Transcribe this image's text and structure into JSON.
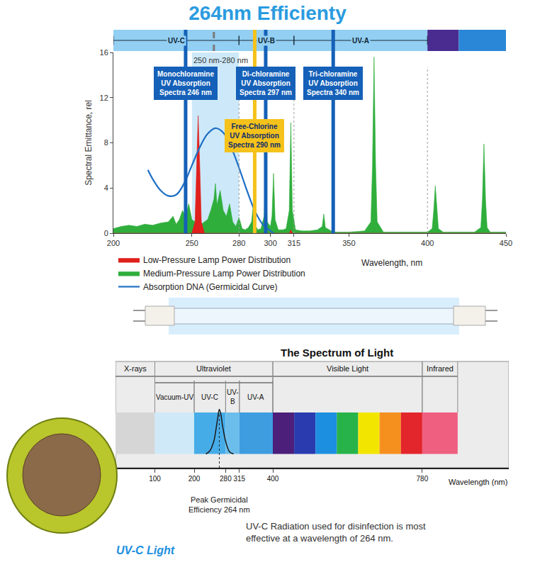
{
  "chart_data": [
    {
      "type": "area",
      "title": "264nm Efficienty",
      "xlabel": "Wavelength, nm",
      "ylabel": "Spectral Emittance, rel",
      "xlim": [
        200,
        450
      ],
      "xticks": [
        200,
        250,
        280,
        300,
        315,
        350,
        400,
        450
      ],
      "ylim": [
        0,
        16
      ],
      "yticks": [
        0,
        4,
        8,
        12,
        16
      ],
      "grid": false,
      "legend": "bottom",
      "series": [
        {
          "name": "Low-Pressure Lamp Power Distribution",
          "color": "#e0201c",
          "type": "area",
          "x": [
            200,
            250,
            252,
            253,
            254,
            255,
            256,
            258,
            296,
            297,
            298,
            312,
            313,
            314,
            450
          ],
          "values": [
            0,
            0,
            1.0,
            6.0,
            10.4,
            6.0,
            1.0,
            0,
            0,
            0.3,
            0,
            0,
            0.3,
            0,
            0
          ]
        },
        {
          "name": "Medium-Pressure Lamp Power Distribution",
          "color": "#2fae3c",
          "type": "area",
          "x": [
            200,
            205,
            210,
            215,
            220,
            225,
            230,
            235,
            238,
            240,
            242,
            244,
            246,
            248,
            250,
            252,
            254,
            256,
            258,
            260,
            262,
            264,
            265,
            266,
            268,
            270,
            272,
            274,
            276,
            278,
            280,
            282,
            284,
            286,
            288,
            289,
            290,
            292,
            294,
            296,
            297,
            298,
            300,
            301,
            302,
            303,
            305,
            308,
            310,
            312,
            313,
            314,
            316,
            320,
            325,
            330,
            333,
            334,
            335,
            340,
            350,
            360,
            364,
            365,
            366,
            367,
            368,
            372,
            380,
            390,
            400,
            403,
            404,
            405,
            406,
            407,
            410,
            420,
            430,
            434,
            435,
            436,
            437,
            438,
            440,
            450
          ],
          "values": [
            0.4,
            0.6,
            0.7,
            0.6,
            0.8,
            0.7,
            0.9,
            1.0,
            1.5,
            0.8,
            1.2,
            2.0,
            1.5,
            2.6,
            1.2,
            1.0,
            1.8,
            0.8,
            1.0,
            1.2,
            2.0,
            3.0,
            4.4,
            2.5,
            3.8,
            2.0,
            1.5,
            2.6,
            1.0,
            0.6,
            1.4,
            0.4,
            0.3,
            0.5,
            1.0,
            2.4,
            0.8,
            0.3,
            0.4,
            1.5,
            4.6,
            1.0,
            0.6,
            1.5,
            5.3,
            1.2,
            0.3,
            0.3,
            0.4,
            2.0,
            9.8,
            2.0,
            0.3,
            0.2,
            0.2,
            0.3,
            0.6,
            1.7,
            0.5,
            0.1,
            0.1,
            0.2,
            1.0,
            6.0,
            15.6,
            6.0,
            1.0,
            0.1,
            0.1,
            0.1,
            0.1,
            0.4,
            2.0,
            4.2,
            2.0,
            0.4,
            0.1,
            0.1,
            0.1,
            0.5,
            3.0,
            7.9,
            3.0,
            0.5,
            0.1,
            0.1
          ]
        },
        {
          "name": "Absorption DNA (Germicidal Curve)",
          "color": "#1f6fc4",
          "type": "line",
          "x": [
            222,
            225,
            230,
            235,
            240,
            245,
            250,
            255,
            260,
            265,
            270,
            275,
            280,
            285,
            290,
            295,
            300,
            302
          ],
          "values": [
            5.6,
            4.8,
            3.8,
            3.3,
            3.4,
            4.4,
            6.0,
            7.6,
            8.8,
            9.3,
            8.9,
            7.6,
            5.8,
            3.8,
            2.0,
            0.8,
            0.2,
            0
          ]
        }
      ],
      "bands": [
        {
          "label": "UV-C",
          "end": 280
        },
        {
          "label": "UV-B",
          "start": 280,
          "end": 315
        },
        {
          "label": "UV-A",
          "start": 315,
          "end": 400
        }
      ],
      "highlight": {
        "label": "250 nm-280 nm",
        "start": 250,
        "end": 280
      },
      "peak_wavelength": 264,
      "absorption_markers": [
        {
          "wavelength": 246,
          "lines": [
            "Monochloramine",
            "UV Absorption",
            "Spectra 246 nm"
          ],
          "color": "#1560b8"
        },
        {
          "wavelength": 297,
          "lines": [
            "Di-chloramine",
            "UV Absorption",
            "Spectra 297 nm"
          ],
          "color": "#1560b8"
        },
        {
          "wavelength": 340,
          "lines": [
            "Tri-chloramine",
            "UV Absorption",
            "Spectra 340 nm"
          ],
          "color": "#1560b8"
        },
        {
          "wavelength": 290,
          "lines": [
            "Free-Chlorine",
            "UV Absorption",
            "Spectra 290 nm"
          ],
          "color": "#f5c21b"
        }
      ]
    },
    {
      "type": "spectrum",
      "title": "The Spectrum of Light",
      "xlabel": "Wavelength (nm)",
      "xlim": [
        0,
        1000
      ],
      "xticks": [
        100,
        200,
        280,
        315,
        400,
        780
      ],
      "ylim": [
        0,
        1
      ],
      "tick_labels": "x",
      "grid": false,
      "regions": [
        {
          "label": "X-rays",
          "end": 100,
          "color": "#d6d6d6"
        },
        {
          "label": "Ultraviolet",
          "start": 100,
          "end": 400
        },
        {
          "label": "Visible Light",
          "start": 400,
          "end": 780,
          "colors": [
            "#4b1f7a",
            "#2a3bb0",
            "#1c8fe0",
            "#27b34a",
            "#f2e600",
            "#f5901f",
            "#e3262b"
          ]
        },
        {
          "label": "Infrared",
          "start": 780,
          "end": 870,
          "color": "#ef5f80"
        }
      ],
      "subregions": [
        {
          "label": "Vacuum-UV",
          "start": 100,
          "end": 200,
          "color": "#cfe9f8"
        },
        {
          "label": "UV-C",
          "start": 200,
          "end": 280,
          "color": "#46ace8"
        },
        {
          "label": "UV-B",
          "start": 280,
          "end": 315,
          "color": "#6bbdec"
        },
        {
          "label": "UV-A",
          "start": 315,
          "end": 400,
          "color": "#3d9ddf"
        }
      ],
      "series": [
        {
          "color": "#1a1a1a",
          "x": [
            230,
            240,
            250,
            255,
            260,
            264,
            268,
            272,
            280,
            290,
            300
          ],
          "values": [
            0.13,
            0.16,
            0.25,
            0.35,
            0.47,
            0.55,
            0.5,
            0.4,
            0.25,
            0.15,
            0.13
          ]
        }
      ],
      "peak_wavelength": 264,
      "peak_label": [
        "Peak Germicidal",
        "Efficiency 264 nm"
      ],
      "caption": "UV-C Radiation used for disinfection is most effective at a wavelength of 264 nm.",
      "illustration_label": "UV-C Light"
    }
  ]
}
